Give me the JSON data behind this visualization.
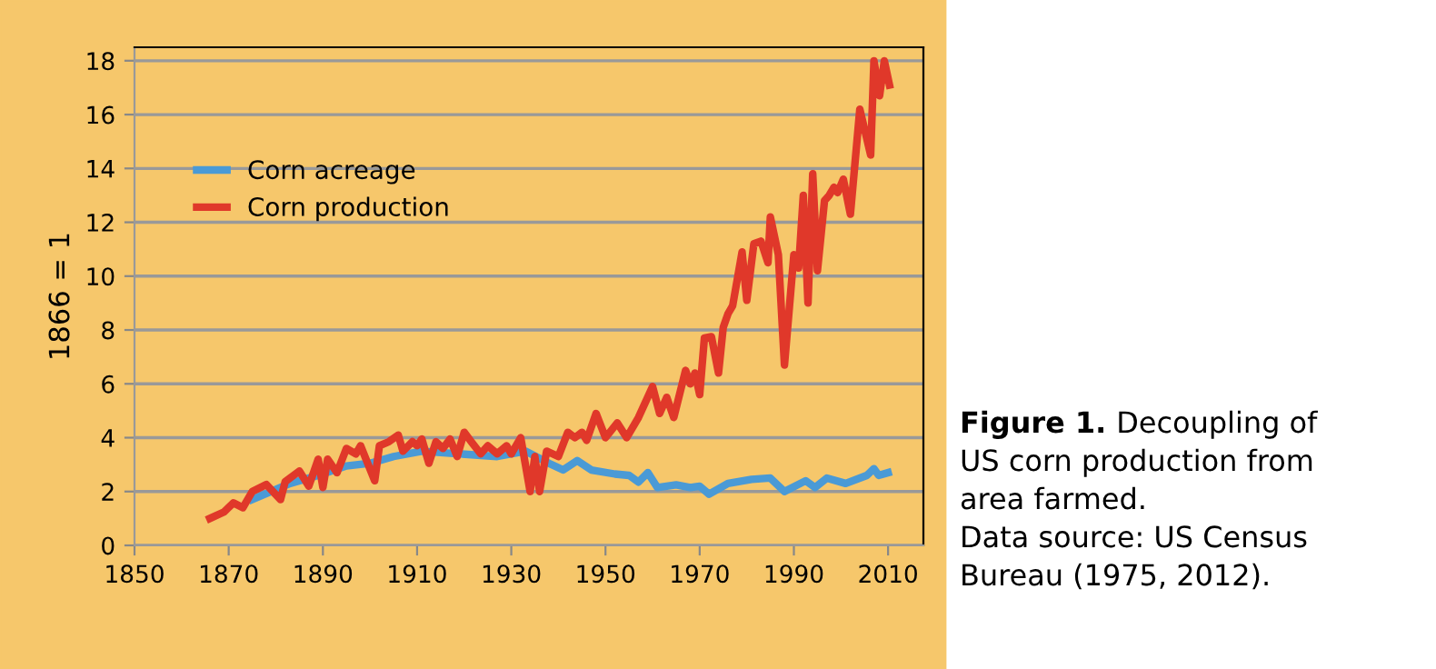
{
  "chart_data": {
    "type": "line",
    "ylabel": "1866 = 1",
    "xlim": [
      1850,
      2017.5
    ],
    "xticks": [
      1850,
      1870,
      1890,
      1910,
      1930,
      1950,
      1970,
      1990,
      2010
    ],
    "ylim": [
      0,
      18.5
    ],
    "yticks": [
      0,
      2,
      4,
      6,
      8,
      10,
      12,
      14,
      16,
      18
    ],
    "grid": "y",
    "legend": "top left",
    "marker": "none",
    "line_style": "solid",
    "series": [
      {
        "name": "Corn acreage",
        "color": "#4a9ad6",
        "x": [
          1875,
          1883,
          1889,
          1895,
          1900,
          1905,
          1911,
          1919,
          1927,
          1933,
          1938,
          1941,
          1944,
          1947,
          1952,
          1955,
          1957,
          1959,
          1961,
          1965,
          1968,
          1970,
          1972,
          1976,
          1981,
          1985,
          1988,
          1992.5,
          1994.5,
          1997,
          2001,
          2005.5,
          2007,
          2008,
          2010
        ],
        "values": [
          1.7,
          2.3,
          2.6,
          2.95,
          3.05,
          3.3,
          3.5,
          3.4,
          3.3,
          3.5,
          3.05,
          2.8,
          3.15,
          2.8,
          2.65,
          2.6,
          2.35,
          2.7,
          2.15,
          2.25,
          2.15,
          2.2,
          1.9,
          2.3,
          2.45,
          2.5,
          2.0,
          2.4,
          2.15,
          2.5,
          2.3,
          2.6,
          2.85,
          2.6,
          2.7
        ]
      },
      {
        "name": "Corn production",
        "color": "#e0382a",
        "x": [
          1866,
          1869,
          1871,
          1873,
          1875,
          1878,
          1881,
          1882,
          1885,
          1887,
          1889,
          1890,
          1891,
          1893,
          1895,
          1897,
          1898,
          1901,
          1902,
          1904,
          1906,
          1907,
          1909,
          1910,
          1911,
          1912.5,
          1914,
          1915.5,
          1917,
          1918.5,
          1920,
          1921.5,
          1923.5,
          1925,
          1927,
          1929,
          1930,
          1932,
          1934,
          1935,
          1936,
          1937.5,
          1940,
          1942,
          1943.5,
          1945,
          1946,
          1948,
          1950,
          1952.5,
          1954.5,
          1957,
          1960,
          1961.5,
          1963,
          1964.5,
          1967,
          1968,
          1969,
          1970,
          1971,
          1972.5,
          1974,
          1975,
          1976,
          1977,
          1979,
          1980,
          1981.5,
          1983,
          1984.5,
          1985,
          1986.7,
          1988,
          1990,
          1991,
          1992,
          1993,
          1994,
          1995,
          1996.5,
          1997.5,
          1998.5,
          1999.3,
          2000.5,
          2002,
          2004,
          2006.3,
          2007,
          2008.2,
          2009.2,
          2010.3
        ],
        "values": [
          1.0,
          1.24,
          1.58,
          1.4,
          2.0,
          2.26,
          1.7,
          2.37,
          2.76,
          2.2,
          3.2,
          2.15,
          3.2,
          2.7,
          3.6,
          3.4,
          3.7,
          2.4,
          3.7,
          3.85,
          4.1,
          3.5,
          3.85,
          3.7,
          3.95,
          3.05,
          3.85,
          3.6,
          3.95,
          3.3,
          4.2,
          3.85,
          3.4,
          3.7,
          3.4,
          3.7,
          3.4,
          4.0,
          2.0,
          3.3,
          2.0,
          3.5,
          3.3,
          4.2,
          4.0,
          4.2,
          3.9,
          4.9,
          4.0,
          4.55,
          4.0,
          4.75,
          5.9,
          4.9,
          5.5,
          4.75,
          6.5,
          6.0,
          6.4,
          5.6,
          7.7,
          7.75,
          6.4,
          8.1,
          8.6,
          8.9,
          10.9,
          9.1,
          11.2,
          11.3,
          10.5,
          12.2,
          10.8,
          6.7,
          10.8,
          10.3,
          13.0,
          9.0,
          13.8,
          10.2,
          12.8,
          13.0,
          13.3,
          13.1,
          13.6,
          12.3,
          16.2,
          14.5,
          18.0,
          16.7,
          18.0,
          17.1
        ]
      }
    ],
    "annotations": [
      "Figure 1.",
      "Decoupling of\nUS corn production from\narea farmed.\nData source: US Census\nBureau (1975, 2012)."
    ]
  }
}
